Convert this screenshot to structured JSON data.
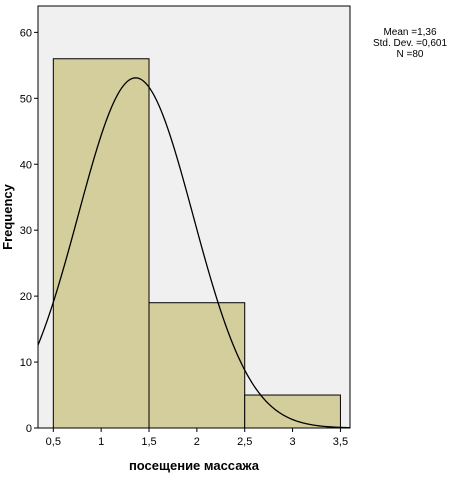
{
  "chart_data": {
    "type": "bar",
    "subtype": "histogram",
    "bins": [
      {
        "from": 0.5,
        "to": 1.5,
        "value": 56
      },
      {
        "from": 1.5,
        "to": 2.5,
        "value": 19
      },
      {
        "from": 2.5,
        "to": 3.5,
        "value": 5
      }
    ],
    "xlabel": "посещение массажа",
    "ylabel": "Frequency",
    "xlim": [
      0.34,
      3.6
    ],
    "ylim": [
      0,
      64
    ],
    "x_ticks": [
      {
        "value": 0.5,
        "label": "0,5"
      },
      {
        "value": 1,
        "label": "1"
      },
      {
        "value": 1.5,
        "label": "1,5"
      },
      {
        "value": 2,
        "label": "2"
      },
      {
        "value": 2.5,
        "label": "2,5"
      },
      {
        "value": 3,
        "label": "3"
      },
      {
        "value": 3.5,
        "label": "3,5"
      }
    ],
    "y_ticks": [
      {
        "value": 0,
        "label": "0"
      },
      {
        "value": 10,
        "label": "10"
      },
      {
        "value": 20,
        "label": "20"
      },
      {
        "value": 30,
        "label": "30"
      },
      {
        "value": 40,
        "label": "40"
      },
      {
        "value": 50,
        "label": "50"
      },
      {
        "value": 60,
        "label": "60"
      }
    ],
    "normal_curve": {
      "mean": 1.36,
      "sd": 0.601,
      "n": 80,
      "bin_width": 1
    },
    "stats": {
      "mean": "Mean =1,36",
      "sd": "Std. Dev. =0,601",
      "n": "N =80"
    },
    "grid": false,
    "colors": {
      "bar_fill": "#d3ce9c",
      "plot_bg": "#f0f0f0",
      "stroke": "#000000"
    }
  }
}
